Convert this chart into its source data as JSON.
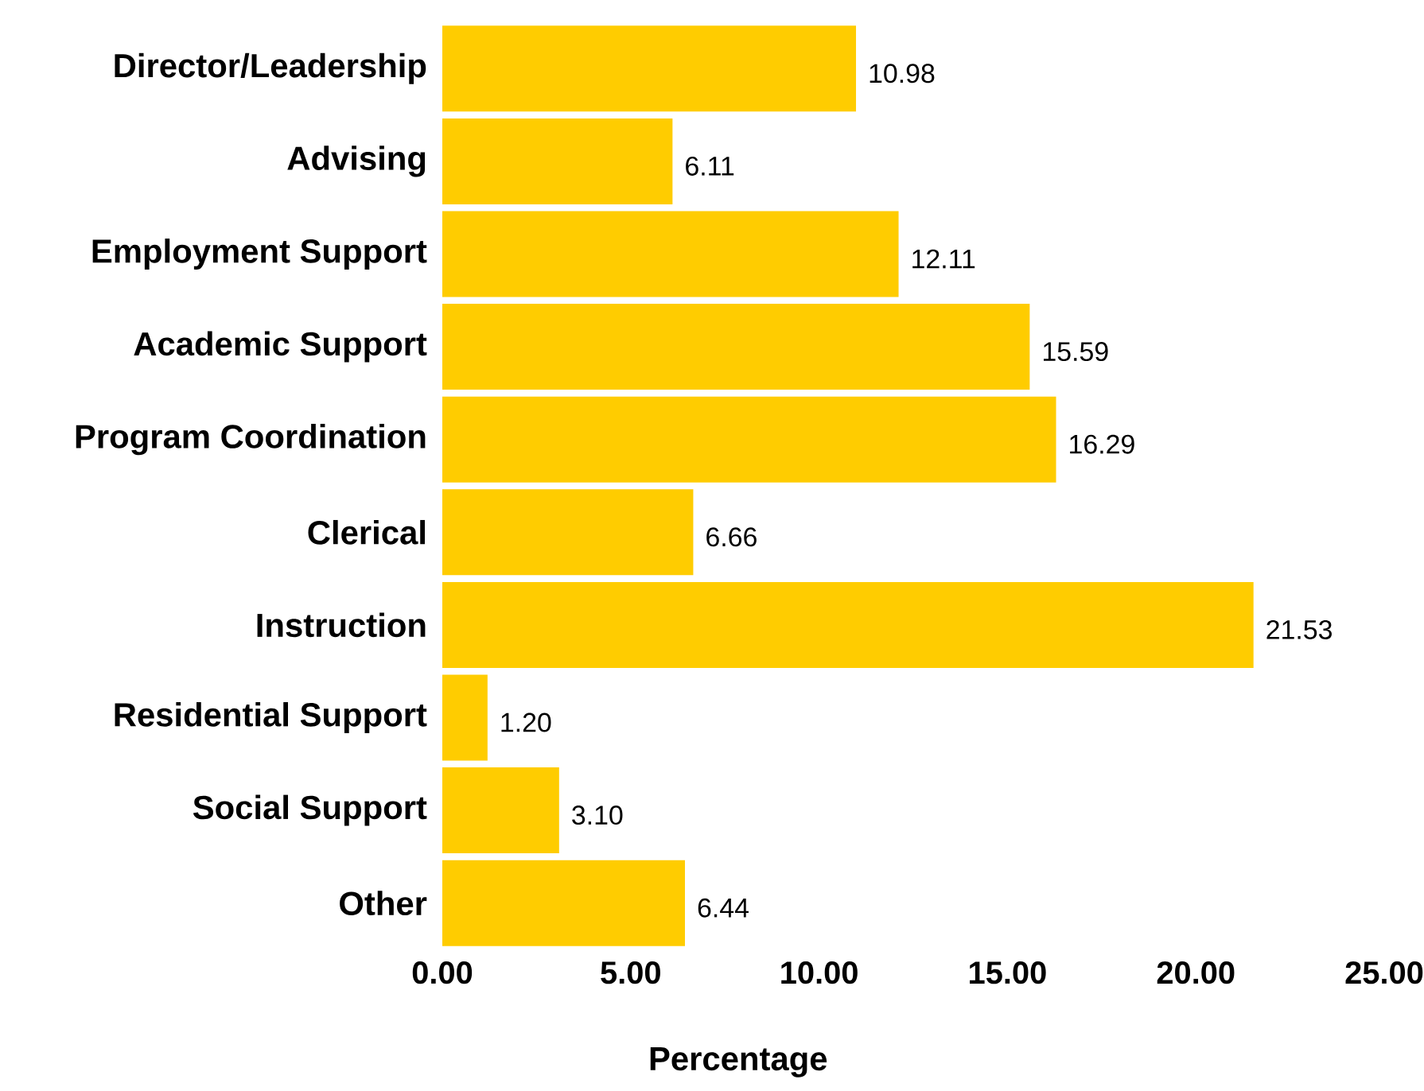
{
  "chart_data": {
    "type": "bar",
    "orientation": "horizontal",
    "xlabel": "Percentage",
    "categories": [
      "Director/Leadership",
      "Advising",
      "Employment Support",
      "Academic Support",
      "Program Coordination",
      "Clerical",
      "Instruction",
      "Residential Support",
      "Social Support",
      "Other"
    ],
    "values": [
      10.98,
      6.11,
      12.11,
      15.59,
      16.29,
      6.66,
      21.53,
      1.2,
      3.1,
      6.44
    ],
    "value_labels": [
      "10.98",
      "6.11",
      "12.11",
      "15.59",
      "16.29",
      "6.66",
      "21.53",
      "1.20",
      "3.10",
      "6.44"
    ],
    "color": "#ffcc00",
    "xlim": [
      0,
      25
    ],
    "xticks": [
      {
        "value": 0,
        "label": "0.00"
      },
      {
        "value": 5,
        "label": "5.00"
      },
      {
        "value": 10,
        "label": "10.00"
      },
      {
        "value": 15,
        "label": "15.00"
      },
      {
        "value": 20,
        "label": "20.00"
      },
      {
        "value": 25,
        "label": "25.00"
      }
    ]
  }
}
